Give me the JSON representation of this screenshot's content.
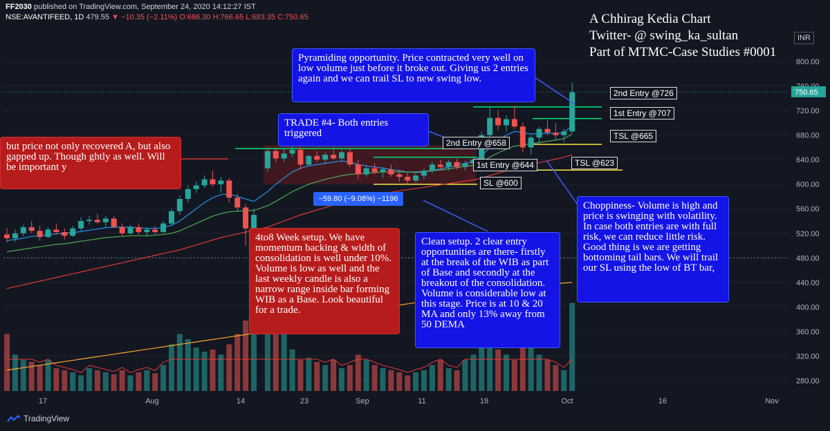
{
  "header": {
    "publisher": "FF2030",
    "published_text": "published on TradingView.com, September 24, 2020 14:12:27 IST",
    "symbol": "NSE:AVANTIFEED, 1D",
    "last": "479.55",
    "change": "−10.35 (−2.11%)",
    "ohlc": "O:686.30 H:766.65 L:683.35 C:750.65"
  },
  "author": {
    "line1": "A Chhirag Kedia Chart",
    "line2": "Twitter- @ swing_ka_sultan",
    "line3": "Part of MTMC-Case Studies #0001"
  },
  "currency": "INR",
  "notes": {
    "pyramiding": "Pyramiding opportunity. Price contracted very well on low volume just before it broke out. Giving us 2 entries again and we can trail SL to new swing low.",
    "trade4": "TRADE #4- Both entries triggered",
    "left_partial": "but price not only recovered A, but also gapped up. Though ghtly as well. Will be important y",
    "setup": "4to8 Week setup. We have momentum backing & width of consolidation is well under 10%. Volume is low as well and the last weekly candle is also a narrow range inside bar forming WIB as a Base. Look beautiful for a trade.",
    "clean": "Clean setup. 2 clear entry opportunities are there- firstly at the break of the WIB as part of Base and secondly at the breakout of the consolidation. Volume is considerable low at this stage. Price is at 10 & 20 MA and only 13% away from 50 DEMA",
    "choppiness": "Choppiness- Volume is high and price is swinging with volatility. In case both entries are with full risk, we can reduce little risk. Good thing is we are getting bottoming tail bars. We will trail our SL using the low of BT bar,"
  },
  "levels": {
    "entry2_old": "2nd Entry @658",
    "entry1_old": "1st Entry @644",
    "sl_old": "SL @600",
    "entry2_new": "2nd Entry @726",
    "entry1_new": "1st Entry @707",
    "tsl_665": "TSL @665",
    "tsl_623": "TSL @623"
  },
  "measure": "−59.80 (−9.08%) −1196",
  "footer": {
    "brand": "TradingView"
  },
  "colors": {
    "up": "#26a69a",
    "down": "#ef5350",
    "ma_blue": "#2196f3",
    "ma_green": "#4caf50",
    "ma_red": "#e53935",
    "ma_orange": "#ffa726",
    "level_green": "#00e676",
    "level_yellow": "#ffeb3b"
  },
  "chart_data": {
    "type": "candlestick",
    "title": "NSE:AVANTIFEED, 1D",
    "last_price": 750.65,
    "y_ticks": [
      280,
      320,
      360,
      400,
      440,
      480,
      520,
      560,
      600,
      640,
      680,
      720,
      760,
      800
    ],
    "y_range": [
      260,
      840
    ],
    "x_ticks": [
      "17",
      "Aug",
      "14",
      "23",
      "Sep",
      "11",
      "19",
      "Oct",
      "16",
      "Nov"
    ],
    "candles": [
      {
        "o": 518,
        "h": 528,
        "l": 505,
        "c": 512
      },
      {
        "o": 512,
        "h": 526,
        "l": 506,
        "c": 520
      },
      {
        "o": 520,
        "h": 534,
        "l": 515,
        "c": 530
      },
      {
        "o": 530,
        "h": 540,
        "l": 520,
        "c": 524
      },
      {
        "o": 524,
        "h": 532,
        "l": 508,
        "c": 514
      },
      {
        "o": 514,
        "h": 530,
        "l": 512,
        "c": 526
      },
      {
        "o": 526,
        "h": 536,
        "l": 518,
        "c": 522
      },
      {
        "o": 522,
        "h": 528,
        "l": 510,
        "c": 516
      },
      {
        "o": 516,
        "h": 532,
        "l": 514,
        "c": 528
      },
      {
        "o": 528,
        "h": 546,
        "l": 524,
        "c": 540
      },
      {
        "o": 540,
        "h": 548,
        "l": 534,
        "c": 542
      },
      {
        "o": 542,
        "h": 552,
        "l": 536,
        "c": 538
      },
      {
        "o": 538,
        "h": 548,
        "l": 530,
        "c": 544
      },
      {
        "o": 544,
        "h": 548,
        "l": 528,
        "c": 530
      },
      {
        "o": 530,
        "h": 536,
        "l": 516,
        "c": 520
      },
      {
        "o": 520,
        "h": 534,
        "l": 518,
        "c": 530
      },
      {
        "o": 530,
        "h": 536,
        "l": 518,
        "c": 522
      },
      {
        "o": 522,
        "h": 530,
        "l": 514,
        "c": 526
      },
      {
        "o": 526,
        "h": 532,
        "l": 518,
        "c": 522
      },
      {
        "o": 522,
        "h": 540,
        "l": 520,
        "c": 536
      },
      {
        "o": 536,
        "h": 560,
        "l": 534,
        "c": 556
      },
      {
        "o": 556,
        "h": 582,
        "l": 550,
        "c": 576
      },
      {
        "o": 576,
        "h": 598,
        "l": 570,
        "c": 592
      },
      {
        "o": 592,
        "h": 604,
        "l": 586,
        "c": 598
      },
      {
        "o": 598,
        "h": 614,
        "l": 594,
        "c": 608
      },
      {
        "o": 608,
        "h": 622,
        "l": 596,
        "c": 600
      },
      {
        "o": 600,
        "h": 612,
        "l": 586,
        "c": 606
      },
      {
        "o": 606,
        "h": 610,
        "l": 570,
        "c": 578
      },
      {
        "o": 578,
        "h": 584,
        "l": 556,
        "c": 562
      },
      {
        "o": 562,
        "h": 568,
        "l": 500,
        "c": 528
      },
      {
        "o": 528,
        "h": 560,
        "l": 475,
        "c": 550
      },
      {
        "o": 626,
        "h": 660,
        "l": 620,
        "c": 654
      },
      {
        "o": 654,
        "h": 660,
        "l": 636,
        "c": 642
      },
      {
        "o": 642,
        "h": 658,
        "l": 636,
        "c": 650
      },
      {
        "o": 650,
        "h": 664,
        "l": 644,
        "c": 656
      },
      {
        "o": 656,
        "h": 660,
        "l": 624,
        "c": 632
      },
      {
        "o": 632,
        "h": 648,
        "l": 630,
        "c": 646
      },
      {
        "o": 646,
        "h": 654,
        "l": 636,
        "c": 640
      },
      {
        "o": 640,
        "h": 652,
        "l": 634,
        "c": 648
      },
      {
        "o": 648,
        "h": 660,
        "l": 640,
        "c": 642
      },
      {
        "o": 642,
        "h": 656,
        "l": 636,
        "c": 652
      },
      {
        "o": 652,
        "h": 658,
        "l": 628,
        "c": 632
      },
      {
        "o": 632,
        "h": 640,
        "l": 608,
        "c": 616
      },
      {
        "o": 616,
        "h": 630,
        "l": 612,
        "c": 626
      },
      {
        "o": 626,
        "h": 634,
        "l": 616,
        "c": 620
      },
      {
        "o": 620,
        "h": 628,
        "l": 610,
        "c": 624
      },
      {
        "o": 624,
        "h": 632,
        "l": 612,
        "c": 616
      },
      {
        "o": 616,
        "h": 624,
        "l": 604,
        "c": 612
      },
      {
        "o": 612,
        "h": 620,
        "l": 600,
        "c": 606
      },
      {
        "o": 606,
        "h": 618,
        "l": 602,
        "c": 614
      },
      {
        "o": 614,
        "h": 626,
        "l": 608,
        "c": 622
      },
      {
        "o": 622,
        "h": 636,
        "l": 618,
        "c": 632
      },
      {
        "o": 632,
        "h": 640,
        "l": 624,
        "c": 628
      },
      {
        "o": 628,
        "h": 640,
        "l": 622,
        "c": 636
      },
      {
        "o": 636,
        "h": 642,
        "l": 624,
        "c": 628
      },
      {
        "o": 628,
        "h": 638,
        "l": 622,
        "c": 634
      },
      {
        "o": 634,
        "h": 644,
        "l": 628,
        "c": 640
      },
      {
        "o": 640,
        "h": 686,
        "l": 636,
        "c": 680
      },
      {
        "o": 680,
        "h": 726,
        "l": 672,
        "c": 708
      },
      {
        "o": 708,
        "h": 720,
        "l": 688,
        "c": 696
      },
      {
        "o": 696,
        "h": 712,
        "l": 686,
        "c": 706
      },
      {
        "o": 706,
        "h": 728,
        "l": 690,
        "c": 694
      },
      {
        "o": 694,
        "h": 700,
        "l": 652,
        "c": 660
      },
      {
        "o": 660,
        "h": 680,
        "l": 648,
        "c": 676
      },
      {
        "o": 676,
        "h": 694,
        "l": 664,
        "c": 690
      },
      {
        "o": 690,
        "h": 704,
        "l": 680,
        "c": 684
      },
      {
        "o": 684,
        "h": 700,
        "l": 672,
        "c": 680
      },
      {
        "o": 680,
        "h": 690,
        "l": 668,
        "c": 686
      },
      {
        "o": 686,
        "h": 766,
        "l": 683,
        "c": 750
      }
    ],
    "series": [
      {
        "name": "MA short",
        "values": [
          508,
          510,
          512,
          515,
          516,
          518,
          519,
          520,
          521,
          523,
          525,
          527,
          529,
          530,
          530,
          530,
          529,
          528,
          528,
          529,
          533,
          540,
          550,
          560,
          570,
          578,
          583,
          584,
          580,
          576,
          572,
          588,
          600,
          610,
          620,
          626,
          630,
          632,
          634,
          636,
          638,
          636,
          632,
          630,
          628,
          626,
          624,
          622,
          620,
          619,
          620,
          622,
          625,
          628,
          631,
          634,
          637,
          646,
          660,
          672,
          680,
          686,
          684,
          682,
          682,
          683,
          683,
          684,
          696
        ]
      },
      {
        "name": "MA medium",
        "values": [
          490,
          492,
          494,
          496,
          498,
          500,
          502,
          503,
          505,
          507,
          509,
          511,
          513,
          514,
          515,
          516,
          516,
          516,
          517,
          518,
          520,
          524,
          530,
          536,
          542,
          548,
          552,
          555,
          556,
          557,
          557,
          565,
          572,
          580,
          588,
          594,
          600,
          604,
          608,
          611,
          614,
          616,
          617,
          618,
          619,
          620,
          620,
          620,
          620,
          620,
          621,
          622,
          623,
          625,
          627,
          629,
          631,
          636,
          644,
          651,
          657,
          662,
          664,
          666,
          668,
          670,
          672,
          674,
          682
        ]
      },
      {
        "name": "MA long",
        "values": [
          430,
          433,
          436,
          439,
          442,
          445,
          448,
          451,
          454,
          457,
          460,
          463,
          466,
          469,
          472,
          475,
          478,
          481,
          484,
          487,
          490,
          493,
          497,
          501,
          505,
          509,
          513,
          516,
          519,
          522,
          525,
          530,
          535,
          540,
          545,
          550,
          554,
          558,
          562,
          566,
          570,
          573,
          576,
          579,
          582,
          585,
          587,
          589,
          591,
          593,
          595,
          597,
          599,
          601,
          603,
          605,
          607,
          610,
          614,
          618,
          622,
          626,
          629,
          632,
          635,
          638,
          641,
          644,
          648
        ]
      },
      {
        "name": "MA very long",
        "values": [
          297,
          299,
          301,
          303,
          305,
          307,
          309,
          311,
          313,
          315,
          317,
          319,
          321,
          323,
          325,
          327,
          329,
          331,
          333,
          335,
          337,
          339,
          341,
          343,
          345,
          347,
          349,
          351,
          353,
          355,
          357,
          360,
          363,
          366,
          369,
          372,
          375,
          378,
          381,
          384,
          387,
          390,
          393,
          395,
          397,
          399,
          401,
          403,
          405,
          407,
          409,
          411,
          413,
          415,
          417,
          419,
          421,
          423,
          425,
          427,
          429,
          431,
          433,
          435,
          436,
          437,
          438,
          439,
          440
        ]
      }
    ],
    "volume": [
      0.55,
      0.35,
      0.3,
      0.28,
      0.25,
      0.3,
      0.22,
      0.2,
      0.18,
      0.15,
      0.22,
      0.2,
      0.18,
      0.16,
      0.2,
      0.15,
      0.18,
      0.2,
      0.17,
      0.25,
      0.45,
      0.55,
      0.5,
      0.42,
      0.38,
      0.4,
      0.35,
      0.45,
      0.55,
      0.68,
      0.6,
      1.0,
      0.65,
      0.55,
      0.4,
      0.3,
      0.32,
      0.28,
      0.25,
      0.3,
      0.22,
      0.25,
      0.35,
      0.3,
      0.25,
      0.22,
      0.2,
      0.18,
      0.15,
      0.18,
      0.2,
      0.25,
      0.3,
      0.22,
      0.2,
      0.3,
      0.35,
      0.6,
      0.55,
      0.4,
      0.35,
      0.3,
      0.5,
      0.45,
      0.35,
      0.3,
      0.25,
      0.2,
      0.85
    ],
    "horizontal_levels": [
      {
        "label": "2nd Entry @658",
        "value": 658
      },
      {
        "label": "1st Entry @644",
        "value": 644
      },
      {
        "label": "SL @600",
        "value": 600
      },
      {
        "label": "2nd Entry @726",
        "value": 726
      },
      {
        "label": "1st Entry @707",
        "value": 707
      },
      {
        "label": "TSL @665",
        "value": 665
      },
      {
        "label": "TSL @623",
        "value": 623
      }
    ],
    "crosshair_price": 480
  }
}
